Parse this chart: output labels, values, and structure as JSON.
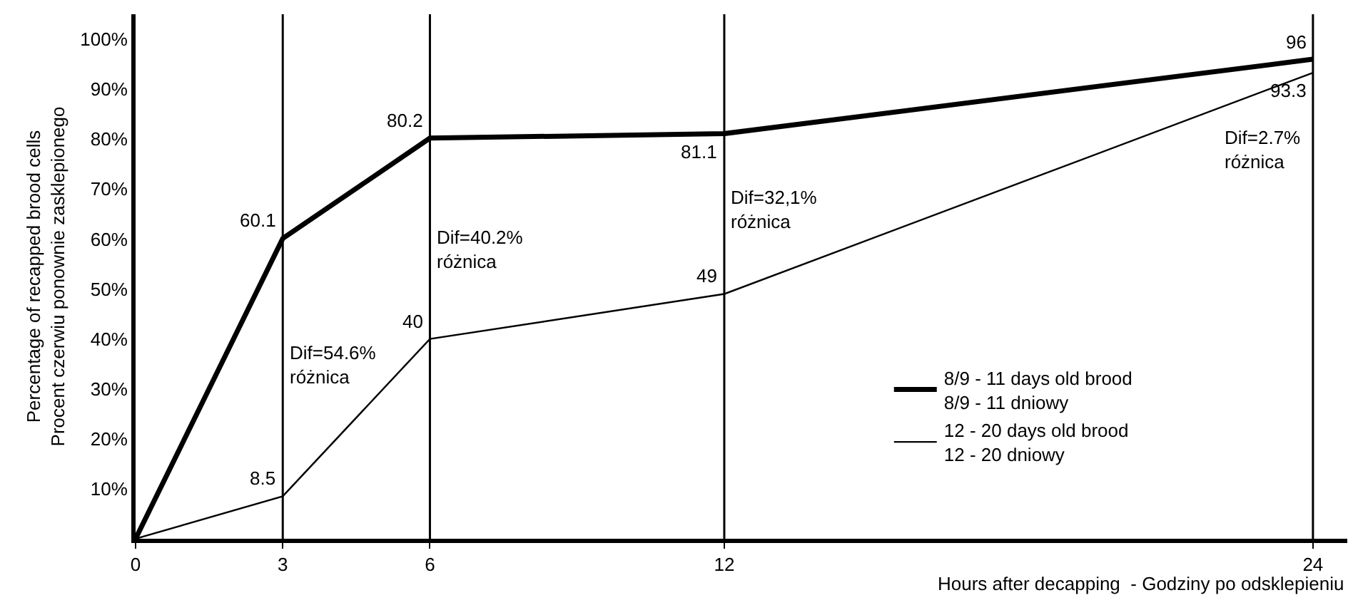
{
  "chart_data": {
    "type": "line",
    "xlabel": "Hours after decapping  - Godziny po odsklepieniu",
    "ylabel": "Percentage of recapped brood cells\nProcent czerwiu ponownie zasklepionego",
    "x": [
      0,
      3,
      6,
      12,
      24
    ],
    "series": [
      {
        "name": "8/9 - 11 days old brood\n8/9 - 11 dniowy",
        "color": "#000000",
        "values": [
          0,
          60.1,
          80.2,
          81.1,
          96
        ],
        "value_labels": [
          null,
          "60.1",
          "80.2",
          "81.1",
          "96"
        ]
      },
      {
        "name": "12 - 20 days old brood\n12 - 20 dniowy",
        "color": "#000000",
        "values": [
          0,
          8.5,
          40,
          49,
          93.3
        ],
        "value_labels": [
          null,
          "8.5",
          "40",
          "49",
          "93.3"
        ]
      }
    ],
    "xlim": [
      0,
      24.7
    ],
    "ylim": [
      0,
      105
    ],
    "xticks": [
      0,
      3,
      6,
      12,
      24
    ],
    "yticks": [
      {
        "value": 10,
        "label": "10%"
      },
      {
        "value": 20,
        "label": "20%"
      },
      {
        "value": 30,
        "label": "30%"
      },
      {
        "value": 40,
        "label": "40%"
      },
      {
        "value": 50,
        "label": "50%"
      },
      {
        "value": 60,
        "label": "60%"
      },
      {
        "value": 70,
        "label": "70%"
      },
      {
        "value": 80,
        "label": "80%"
      },
      {
        "value": 90,
        "label": "90%"
      },
      {
        "value": 100,
        "label": "100%"
      }
    ],
    "ref_lines": [
      {
        "axis": "x",
        "value": 3
      },
      {
        "axis": "x",
        "value": 6
      },
      {
        "axis": "x",
        "value": 12
      },
      {
        "axis": "x",
        "value": 24
      }
    ],
    "annotations": [
      {
        "text": "Dif=54.6%\nróżnica",
        "x": 3,
        "y": 40
      },
      {
        "text": "Dif=40.2%\nróżnica",
        "x": 6,
        "y": 63
      },
      {
        "text": "Dif=32,1%\nróżnica",
        "x": 12,
        "y": 71
      },
      {
        "text": "Dif=2.7%\nróżnica",
        "x": 24,
        "y": 83
      }
    ],
    "legend": "bottom right",
    "marker": "none",
    "line_style": "solid"
  }
}
